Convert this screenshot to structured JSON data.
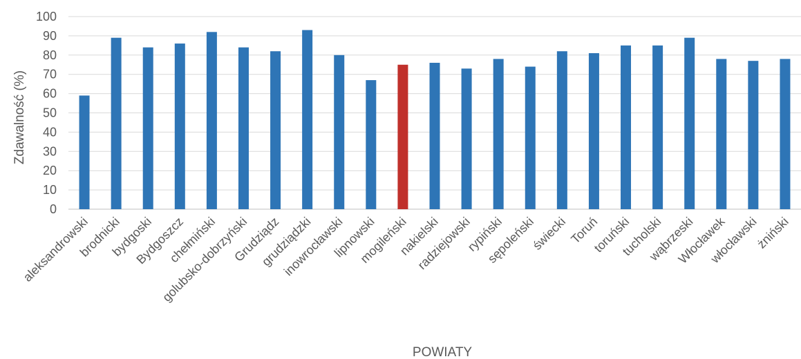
{
  "chart_data": {
    "type": "bar",
    "title": "",
    "xlabel": "POWIATY",
    "ylabel": "Zdawalność (%)",
    "ylim": [
      0,
      100
    ],
    "yticks": [
      0,
      10,
      20,
      30,
      40,
      50,
      60,
      70,
      80,
      90,
      100
    ],
    "grid": true,
    "legend": "none",
    "colors": {
      "default": "#2e75b6",
      "highlight": "#c0302b"
    },
    "highlight_category": "mogileński",
    "categories": [
      "aleksandrowski",
      "brodnicki",
      "bydgoski",
      "Bydgoszcz",
      "chełmiński",
      "golubsko-dobrzyński",
      "Grudziądz",
      "grudziądzki",
      "inowrocławski",
      "lipnowski",
      "mogileński",
      "nakielski",
      "radziejowski",
      "rypiński",
      "sępoleński",
      "świecki",
      "Toruń",
      "toruński",
      "tucholski",
      "wąbrzeski",
      "Włocławek",
      "włocławski",
      "żniński"
    ],
    "values": [
      59,
      89,
      84,
      86,
      92,
      84,
      82,
      93,
      80,
      67,
      75,
      76,
      73,
      78,
      74,
      82,
      81,
      85,
      85,
      89,
      78,
      77,
      78
    ]
  }
}
